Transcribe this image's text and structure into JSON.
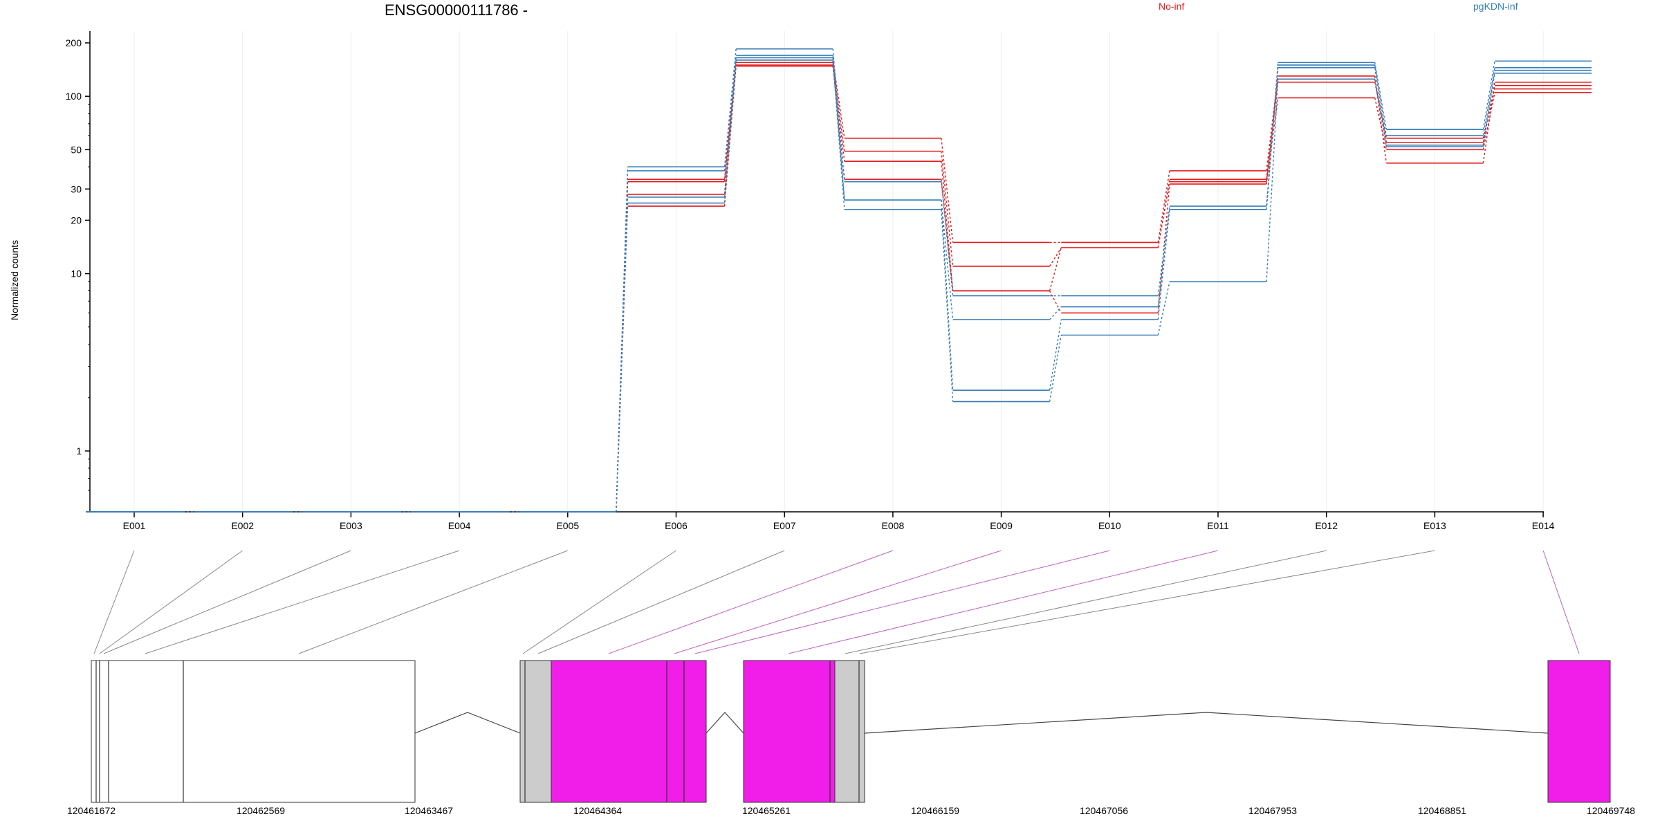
{
  "chart_data": {
    "type": "line",
    "title": "ENSG00000111786 -",
    "ylabel": "Normalized counts",
    "y_scale": "log",
    "ylim": [
      0.5,
      220
    ],
    "y_ticks": [
      200,
      100,
      50,
      30,
      20,
      10,
      1
    ],
    "grid": "vertical",
    "legend_placement": "top-right",
    "legend": [
      {
        "name": "No-inf",
        "color": "#e41a1c"
      },
      {
        "name": "pgKDN-inf",
        "color": "#377eb8"
      }
    ],
    "categories": [
      "E001",
      "E002",
      "E003",
      "E004",
      "E005",
      "E006",
      "E007",
      "E008",
      "E009",
      "E010",
      "E011",
      "E012",
      "E013",
      "E014"
    ],
    "series": [
      {
        "group": "No-inf",
        "color": "#e41a1c",
        "values": [
          0.5,
          0.5,
          0.5,
          0.5,
          0.5,
          34,
          160,
          58,
          15,
          15,
          38,
          130,
          42,
          120
        ]
      },
      {
        "group": "No-inf",
        "color": "#e41a1c",
        "values": [
          0.5,
          0.5,
          0.5,
          0.5,
          0.5,
          33,
          155,
          49,
          11,
          14,
          34,
          125,
          55,
          115
        ]
      },
      {
        "group": "No-inf",
        "color": "#e41a1c",
        "values": [
          0.5,
          0.5,
          0.5,
          0.5,
          0.5,
          28,
          150,
          43,
          8,
          14,
          33,
          120,
          58,
          110
        ]
      },
      {
        "group": "No-inf",
        "color": "#e41a1c",
        "values": [
          0.5,
          0.5,
          0.5,
          0.5,
          0.5,
          24,
          148,
          34,
          8,
          6,
          32,
          98,
          50,
          105
        ]
      },
      {
        "group": "pgKDN-inf",
        "color": "#377eb8",
        "values": [
          0.5,
          0.5,
          0.5,
          0.5,
          0.5,
          40,
          185,
          33,
          7.5,
          7.5,
          24,
          155,
          65,
          158
        ]
      },
      {
        "group": "pgKDN-inf",
        "color": "#377eb8",
        "values": [
          0.5,
          0.5,
          0.5,
          0.5,
          0.5,
          38,
          170,
          26,
          5.5,
          6.5,
          23,
          150,
          60,
          145
        ]
      },
      {
        "group": "pgKDN-inf",
        "color": "#377eb8",
        "values": [
          0.5,
          0.5,
          0.5,
          0.5,
          0.5,
          27,
          165,
          26,
          2.2,
          5.5,
          23,
          145,
          53,
          140
        ]
      },
      {
        "group": "pgKDN-inf",
        "color": "#377eb8",
        "values": [
          0.5,
          0.5,
          0.5,
          0.5,
          0.5,
          25,
          160,
          23,
          1.9,
          4.5,
          9,
          125,
          52,
          135
        ]
      }
    ],
    "gene_model": {
      "coordinates": [
        "120461672",
        "120462569",
        "120463467",
        "120464364",
        "120465261",
        "120466159",
        "120467056",
        "120467953",
        "120468851",
        "120469748"
      ],
      "exon_fill_colors": {
        "normal": "#ffffff",
        "utr": "#cccccc",
        "highlight": "#f01ee8"
      }
    }
  }
}
